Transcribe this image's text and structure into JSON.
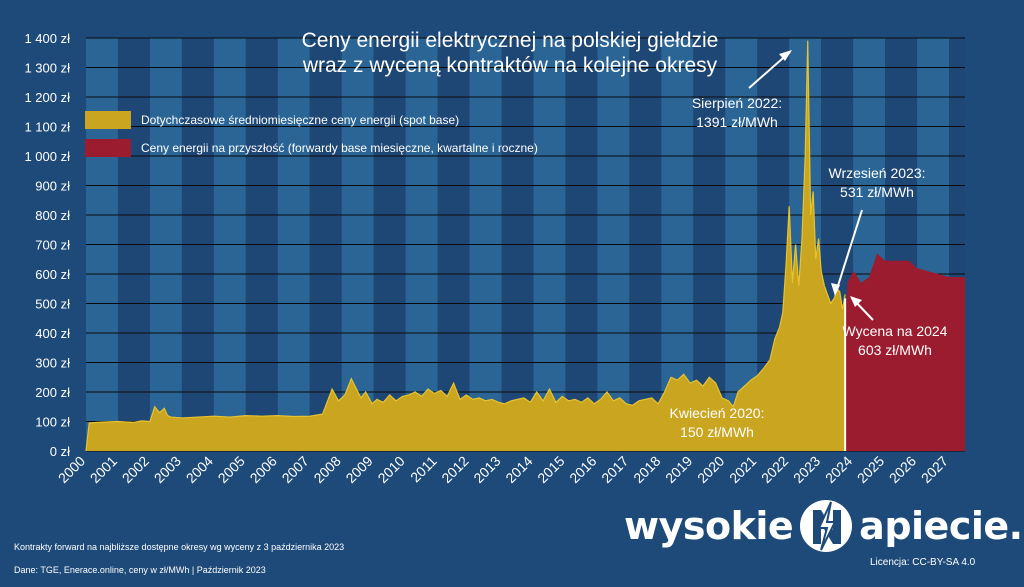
{
  "title_line1": "Ceny energii elektrycznej na polskiej giełdzie",
  "title_line2": "wraz z wyceną kontraktów na kolejne okresy",
  "legend": [
    {
      "label": "Dotychczasowe średniomiesięczne ceny energii (spot base)",
      "color": "#c9a520"
    },
    {
      "label": "Ceny energii na przyszłość (forwardy base miesięczne, kwartalne i roczne)",
      "color": "#9b1c2e"
    }
  ],
  "annotations": {
    "aug2022": {
      "line1": "Sierpień 2022:",
      "line2": "1391 zł/MWh"
    },
    "sep2023": {
      "line1": "Wrzesień 2023:",
      "line2": "531 zł/MWh"
    },
    "val2024": {
      "line1": "Wycena na 2024",
      "line2": "603 zł/MWh"
    },
    "apr2020": {
      "line1": "Kwiecień 2020:",
      "line2": "150 zł/MWh"
    }
  },
  "footer": {
    "note1": "Kontrakty forward na najbliższe dostępne okresy wg wyceny z 3 października 2023",
    "note2": "Dane: TGE, Enerace.online, ceny w zł/MWh  | Październik 2023",
    "license": "Licencja: CC-BY-SA 4.0"
  },
  "brand": {
    "left": "wysokie",
    "right": "apiecie.pl"
  },
  "colors": {
    "background": "#1d4a78",
    "stripe_dark": "#1f4775",
    "stripe_light": "#2a6596",
    "spot": "#c9a520",
    "spot_line": "#e8c330",
    "forward": "#9b1c2e"
  },
  "chart_data": {
    "type": "area",
    "x_unit": "year",
    "ylim": [
      0,
      1400
    ],
    "yticks": [
      0,
      100,
      200,
      300,
      400,
      500,
      600,
      700,
      800,
      900,
      1000,
      1100,
      1200,
      1300,
      1400
    ],
    "ytick_labels": [
      "0 zł",
      "100 zł",
      "200 zł",
      "300 zł",
      "400 zł",
      "500 zł",
      "600 zł",
      "700 zł",
      "800 zł",
      "900 zł",
      "1 000 zł",
      "1 100 zł",
      "1 200 zł",
      "1 300 zł",
      "1 400 zł"
    ],
    "xlim": [
      2000,
      2027.5
    ],
    "xtick_labels": [
      "2000",
      "2001",
      "2002",
      "2003",
      "2004",
      "2005",
      "2006",
      "2007",
      "2008",
      "2009",
      "2010",
      "2011",
      "2012",
      "2013",
      "2014",
      "2015",
      "2016",
      "2017",
      "2018",
      "2019",
      "2020",
      "2021",
      "2022",
      "2023",
      "2024",
      "2025",
      "2026",
      "2027"
    ],
    "grid": true,
    "series": [
      {
        "name": "Dotychczasowe średniomiesięczne ceny energii (spot base)",
        "kind": "spot",
        "x": [
          2000.0,
          2000.1,
          2000.5,
          2001.0,
          2001.5,
          2001.75,
          2002.0,
          2002.15,
          2002.3,
          2002.45,
          2002.55,
          2002.65,
          2003.0,
          2003.5,
          2004.0,
          2004.5,
          2005.0,
          2005.5,
          2006.0,
          2006.5,
          2007.0,
          2007.4,
          2007.7,
          2007.9,
          2008.1,
          2008.3,
          2008.6,
          2008.75,
          2008.95,
          2009.1,
          2009.3,
          2009.5,
          2009.7,
          2009.9,
          2010.1,
          2010.3,
          2010.5,
          2010.7,
          2010.9,
          2011.1,
          2011.3,
          2011.5,
          2011.7,
          2011.9,
          2012.1,
          2012.3,
          2012.5,
          2012.7,
          2012.9,
          2013.1,
          2013.3,
          2013.5,
          2013.7,
          2013.9,
          2014.1,
          2014.3,
          2014.5,
          2014.7,
          2014.9,
          2015.1,
          2015.3,
          2015.5,
          2015.7,
          2015.9,
          2016.1,
          2016.3,
          2016.5,
          2016.7,
          2016.9,
          2017.1,
          2017.3,
          2017.5,
          2017.7,
          2017.9,
          2018.1,
          2018.3,
          2018.5,
          2018.7,
          2018.9,
          2019.1,
          2019.3,
          2019.5,
          2019.7,
          2019.9,
          2020.1,
          2020.25,
          2020.4,
          2020.6,
          2020.8,
          2021.0,
          2021.2,
          2021.4,
          2021.55,
          2021.7,
          2021.8,
          2021.9,
          2022.0,
          2022.1,
          2022.2,
          2022.3,
          2022.4,
          2022.5,
          2022.58,
          2022.67,
          2022.75,
          2022.83,
          2022.92,
          2023.0,
          2023.1,
          2023.2,
          2023.3,
          2023.42,
          2023.5,
          2023.58,
          2023.67,
          2023.75
        ],
        "y": [
          0,
          95,
          98,
          100,
          97,
          102,
          100,
          150,
          130,
          145,
          120,
          115,
          112,
          115,
          118,
          115,
          120,
          118,
          120,
          117,
          118,
          125,
          210,
          170,
          190,
          245,
          180,
          200,
          160,
          175,
          165,
          190,
          170,
          185,
          190,
          200,
          185,
          210,
          195,
          205,
          185,
          230,
          175,
          190,
          175,
          180,
          170,
          175,
          165,
          160,
          170,
          175,
          180,
          165,
          200,
          170,
          210,
          165,
          185,
          170,
          175,
          165,
          180,
          160,
          175,
          200,
          170,
          180,
          160,
          155,
          170,
          175,
          180,
          160,
          200,
          250,
          240,
          260,
          230,
          240,
          220,
          250,
          230,
          180,
          170,
          150,
          200,
          220,
          240,
          255,
          280,
          310,
          380,
          420,
          470,
          630,
          830,
          570,
          700,
          560,
          720,
          1000,
          1391,
          800,
          880,
          650,
          720,
          610,
          560,
          530,
          500,
          520,
          550,
          540,
          480,
          531
        ]
      },
      {
        "name": "Ceny energii na przyszłość (forwardy base miesięczne, kwartalne i roczne)",
        "kind": "forward",
        "x": [
          2023.75,
          2023.83,
          2023.92,
          2024.0,
          2024.08,
          2024.25,
          2024.5,
          2024.75,
          2025.0,
          2025.25,
          2025.5,
          2025.75,
          2026.0,
          2027.0,
          2027.5
        ],
        "y": [
          450,
          575,
          590,
          610,
          600,
          570,
          590,
          670,
          645,
          645,
          645,
          645,
          620,
          590,
          590
        ]
      }
    ]
  }
}
